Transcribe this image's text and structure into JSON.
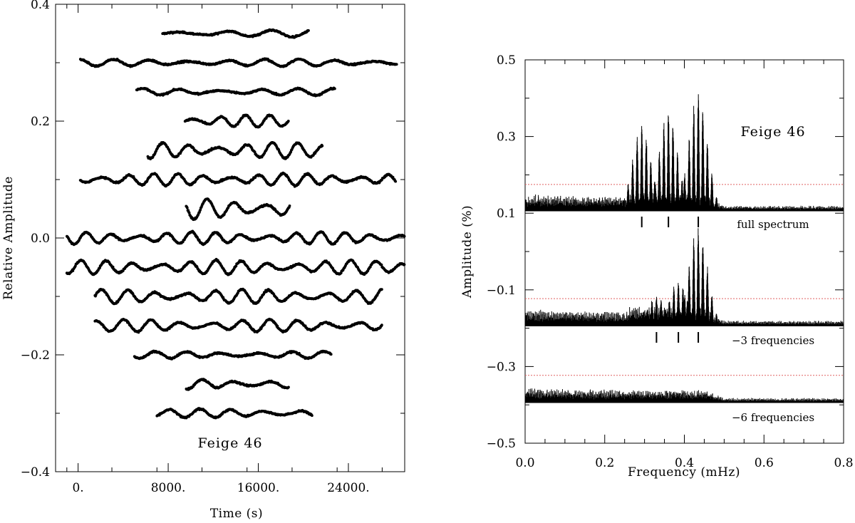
{
  "chart_data": [
    {
      "type": "scatter",
      "title": "",
      "annotation": "Feige 46",
      "xlabel": "Time (s)",
      "ylabel": "Relative Amplitude",
      "xlim": [
        -2000,
        29000
      ],
      "ylim": [
        -0.4,
        0.4
      ],
      "xticks": [
        0,
        8000,
        16000,
        24000
      ],
      "xtick_labels": [
        "0.",
        "8000.",
        "16000.",
        "24000."
      ],
      "yticks": [
        -0.4,
        -0.2,
        0.0,
        0.2,
        0.4
      ],
      "ytick_labels": [
        "−0.4",
        "−0.2",
        "0.0",
        "0.2",
        "0.4"
      ],
      "grid": false,
      "series": [
        {
          "offset": 0.35,
          "x_start": 7500,
          "x_end": 20500,
          "wave_amplitude": 0.004,
          "period_s": 4000
        },
        {
          "offset": 0.3,
          "x_start": 200,
          "x_end": 28300,
          "wave_amplitude": 0.004,
          "period_s": 3300
        },
        {
          "offset": 0.25,
          "x_start": 5200,
          "x_end": 22800,
          "wave_amplitude": 0.004,
          "period_s": 3400
        },
        {
          "offset": 0.2,
          "x_start": 9500,
          "x_end": 18700,
          "wave_amplitude": 0.007,
          "period_s": 2300
        },
        {
          "offset": 0.15,
          "x_start": 6200,
          "x_end": 21700,
          "wave_amplitude": 0.009,
          "period_s": 2400
        },
        {
          "offset": 0.1,
          "x_start": 200,
          "x_end": 28200,
          "wave_amplitude": 0.007,
          "period_s": 2300
        },
        {
          "offset": 0.05,
          "x_start": 9600,
          "x_end": 18800,
          "wave_amplitude": 0.012,
          "period_s": 2500
        },
        {
          "offset": 0.0,
          "x_start": -1000,
          "x_end": 29000,
          "wave_amplitude": 0.007,
          "period_s": 2300
        },
        {
          "offset": -0.05,
          "x_start": -1000,
          "x_end": 29000,
          "wave_amplitude": 0.008,
          "period_s": 2400
        },
        {
          "offset": -0.1,
          "x_start": 1500,
          "x_end": 27000,
          "wave_amplitude": 0.008,
          "period_s": 2500
        },
        {
          "offset": -0.15,
          "x_start": 1500,
          "x_end": 27000,
          "wave_amplitude": 0.007,
          "period_s": 2600
        },
        {
          "offset": -0.2,
          "x_start": 5000,
          "x_end": 22500,
          "wave_amplitude": 0.004,
          "period_s": 3000
        },
        {
          "offset": -0.25,
          "x_start": 9600,
          "x_end": 18700,
          "wave_amplitude": 0.006,
          "period_s": 2800
        },
        {
          "offset": -0.3,
          "x_start": 7000,
          "x_end": 20800,
          "wave_amplitude": 0.005,
          "period_s": 2900
        }
      ]
    },
    {
      "type": "line",
      "title": "",
      "annotation": "Feige 46",
      "xlabel": "Frequency (mHz)",
      "ylabel": "Amplitude (%)",
      "xlim": [
        0.0,
        0.8
      ],
      "ylim": [
        -0.5,
        0.5
      ],
      "xticks": [
        0.0,
        0.2,
        0.4,
        0.6,
        0.8
      ],
      "xtick_labels": [
        "0.0",
        "0.2",
        "0.4",
        "0.6",
        "0.8"
      ],
      "yticks": [
        -0.5,
        -0.3,
        -0.1,
        0.1,
        0.3,
        0.5
      ],
      "ytick_labels": [
        "−0.5",
        "−0.3",
        "−0.1",
        "0.1",
        "0.3",
        "0.5"
      ],
      "grid": false,
      "series": [
        {
          "name": "full spectrum",
          "baseline": 0.105,
          "noise_level": 0.045,
          "threshold": 0.175,
          "peaks": [
            {
              "freq": 0.293,
              "amplitude": 0.23
            },
            {
              "freq": 0.36,
              "amplitude": 0.265
            },
            {
              "freq": 0.435,
              "amplitude": 0.32
            }
          ],
          "marked_frequencies": [
            0.293,
            0.36,
            0.435
          ]
        },
        {
          "name": "−3 frequencies",
          "baseline": -0.195,
          "noise_level": 0.045,
          "threshold": -0.123,
          "peaks": [
            {
              "freq": 0.33,
              "amplitude": 0.08
            },
            {
              "freq": 0.385,
              "amplitude": 0.12
            },
            {
              "freq": 0.435,
              "amplitude": 0.27
            }
          ],
          "marked_frequencies": [
            0.33,
            0.385,
            0.435
          ]
        },
        {
          "name": "−6 frequencies",
          "baseline": -0.395,
          "noise_level": 0.04,
          "threshold": -0.323,
          "peaks": [],
          "marked_frequencies": []
        }
      ]
    }
  ]
}
